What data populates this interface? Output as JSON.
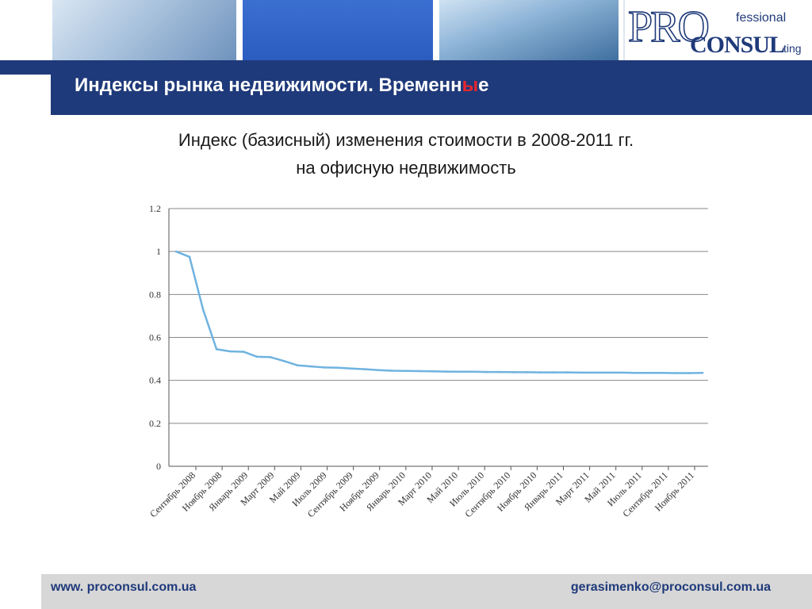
{
  "header": {
    "title_main": "Индексы рынка недвижимости. Временн",
    "title_highlight": "ы",
    "title_end": "е"
  },
  "logo": {
    "pro": "PRO",
    "fessional": "fessional",
    "consul": "CONSUL",
    "ting": "ting"
  },
  "chart_title": {
    "line1": "Индекс (базисный) изменения стоимости в 2008-2011 гг.",
    "line2": "на офисную недвижимость"
  },
  "footer": {
    "website": "www. proconsul.com.ua",
    "email": "gerasimenko@proconsul.com.ua"
  },
  "colors": {
    "title_bar": "#1f3a7a",
    "highlight": "#e8262d",
    "series_line": "#6fb3e0",
    "gridline": "#888888"
  },
  "chart_data": {
    "type": "line",
    "title": "",
    "xlabel": "",
    "ylabel": "",
    "ylim": [
      0,
      1.2
    ],
    "yticks": [
      "0",
      "0.2",
      "0.4",
      "0.6",
      "0.8",
      "1",
      "1.2"
    ],
    "ytick_values": [
      0,
      0.2,
      0.4,
      0.6,
      0.8,
      1,
      1.2
    ],
    "grid": true,
    "x_labels": [
      "Сентябрь 2008",
      "Ноябрь 2008",
      "Январь 2009",
      "Март 2009",
      "Май 2009",
      "Июль 2009",
      "Сентябрь 2009",
      "Ноябрь 2009",
      "Январь 2010",
      "Март 2010",
      "Май 2010",
      "Июль 2010",
      "Сентябрь 2010",
      "Ноябрь 2010",
      "Январь 2011",
      "Март 2011",
      "Май 2011",
      "Июль 2011",
      "Сентябрь 2011",
      "Ноябрь 2011"
    ],
    "series": [
      {
        "values": [
          1.0,
          0.975,
          0.73,
          0.545,
          0.535,
          0.533,
          0.51,
          0.508,
          0.49,
          0.47,
          0.465,
          0.46,
          0.459,
          0.455,
          0.452,
          0.448,
          0.445,
          0.444,
          0.443,
          0.442,
          0.441,
          0.44,
          0.44,
          0.439,
          0.439,
          0.438,
          0.438,
          0.437,
          0.437,
          0.437,
          0.436,
          0.436,
          0.436,
          0.436,
          0.435,
          0.435,
          0.435,
          0.434,
          0.434,
          0.435
        ]
      }
    ]
  }
}
